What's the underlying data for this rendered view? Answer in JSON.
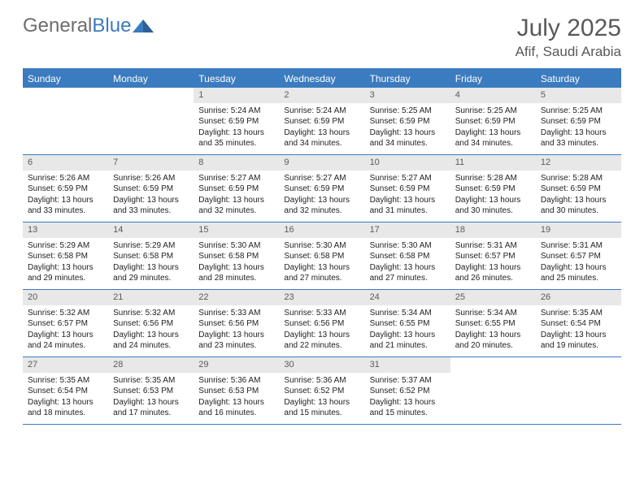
{
  "logo": {
    "text_gray": "General",
    "text_blue": "Blue"
  },
  "title": "July 2025",
  "location": "Afif, Saudi Arabia",
  "colors": {
    "accent": "#3b7bbf",
    "header_text": "#595959",
    "daynum_bg": "#e8e8e8",
    "daynum_text": "#5a5a5a",
    "body_text": "#222222",
    "background": "#ffffff"
  },
  "weekdays": [
    "Sunday",
    "Monday",
    "Tuesday",
    "Wednesday",
    "Thursday",
    "Friday",
    "Saturday"
  ],
  "weeks": [
    [
      null,
      null,
      {
        "n": "1",
        "sr": "5:24 AM",
        "ss": "6:59 PM",
        "dl": "13 hours and 35 minutes."
      },
      {
        "n": "2",
        "sr": "5:24 AM",
        "ss": "6:59 PM",
        "dl": "13 hours and 34 minutes."
      },
      {
        "n": "3",
        "sr": "5:25 AM",
        "ss": "6:59 PM",
        "dl": "13 hours and 34 minutes."
      },
      {
        "n": "4",
        "sr": "5:25 AM",
        "ss": "6:59 PM",
        "dl": "13 hours and 34 minutes."
      },
      {
        "n": "5",
        "sr": "5:25 AM",
        "ss": "6:59 PM",
        "dl": "13 hours and 33 minutes."
      }
    ],
    [
      {
        "n": "6",
        "sr": "5:26 AM",
        "ss": "6:59 PM",
        "dl": "13 hours and 33 minutes."
      },
      {
        "n": "7",
        "sr": "5:26 AM",
        "ss": "6:59 PM",
        "dl": "13 hours and 33 minutes."
      },
      {
        "n": "8",
        "sr": "5:27 AM",
        "ss": "6:59 PM",
        "dl": "13 hours and 32 minutes."
      },
      {
        "n": "9",
        "sr": "5:27 AM",
        "ss": "6:59 PM",
        "dl": "13 hours and 32 minutes."
      },
      {
        "n": "10",
        "sr": "5:27 AM",
        "ss": "6:59 PM",
        "dl": "13 hours and 31 minutes."
      },
      {
        "n": "11",
        "sr": "5:28 AM",
        "ss": "6:59 PM",
        "dl": "13 hours and 30 minutes."
      },
      {
        "n": "12",
        "sr": "5:28 AM",
        "ss": "6:59 PM",
        "dl": "13 hours and 30 minutes."
      }
    ],
    [
      {
        "n": "13",
        "sr": "5:29 AM",
        "ss": "6:58 PM",
        "dl": "13 hours and 29 minutes."
      },
      {
        "n": "14",
        "sr": "5:29 AM",
        "ss": "6:58 PM",
        "dl": "13 hours and 29 minutes."
      },
      {
        "n": "15",
        "sr": "5:30 AM",
        "ss": "6:58 PM",
        "dl": "13 hours and 28 minutes."
      },
      {
        "n": "16",
        "sr": "5:30 AM",
        "ss": "6:58 PM",
        "dl": "13 hours and 27 minutes."
      },
      {
        "n": "17",
        "sr": "5:30 AM",
        "ss": "6:58 PM",
        "dl": "13 hours and 27 minutes."
      },
      {
        "n": "18",
        "sr": "5:31 AM",
        "ss": "6:57 PM",
        "dl": "13 hours and 26 minutes."
      },
      {
        "n": "19",
        "sr": "5:31 AM",
        "ss": "6:57 PM",
        "dl": "13 hours and 25 minutes."
      }
    ],
    [
      {
        "n": "20",
        "sr": "5:32 AM",
        "ss": "6:57 PM",
        "dl": "13 hours and 24 minutes."
      },
      {
        "n": "21",
        "sr": "5:32 AM",
        "ss": "6:56 PM",
        "dl": "13 hours and 24 minutes."
      },
      {
        "n": "22",
        "sr": "5:33 AM",
        "ss": "6:56 PM",
        "dl": "13 hours and 23 minutes."
      },
      {
        "n": "23",
        "sr": "5:33 AM",
        "ss": "6:56 PM",
        "dl": "13 hours and 22 minutes."
      },
      {
        "n": "24",
        "sr": "5:34 AM",
        "ss": "6:55 PM",
        "dl": "13 hours and 21 minutes."
      },
      {
        "n": "25",
        "sr": "5:34 AM",
        "ss": "6:55 PM",
        "dl": "13 hours and 20 minutes."
      },
      {
        "n": "26",
        "sr": "5:35 AM",
        "ss": "6:54 PM",
        "dl": "13 hours and 19 minutes."
      }
    ],
    [
      {
        "n": "27",
        "sr": "5:35 AM",
        "ss": "6:54 PM",
        "dl": "13 hours and 18 minutes."
      },
      {
        "n": "28",
        "sr": "5:35 AM",
        "ss": "6:53 PM",
        "dl": "13 hours and 17 minutes."
      },
      {
        "n": "29",
        "sr": "5:36 AM",
        "ss": "6:53 PM",
        "dl": "13 hours and 16 minutes."
      },
      {
        "n": "30",
        "sr": "5:36 AM",
        "ss": "6:52 PM",
        "dl": "13 hours and 15 minutes."
      },
      {
        "n": "31",
        "sr": "5:37 AM",
        "ss": "6:52 PM",
        "dl": "13 hours and 15 minutes."
      },
      null,
      null
    ]
  ],
  "labels": {
    "sunrise": "Sunrise:",
    "sunset": "Sunset:",
    "daylight": "Daylight:"
  }
}
